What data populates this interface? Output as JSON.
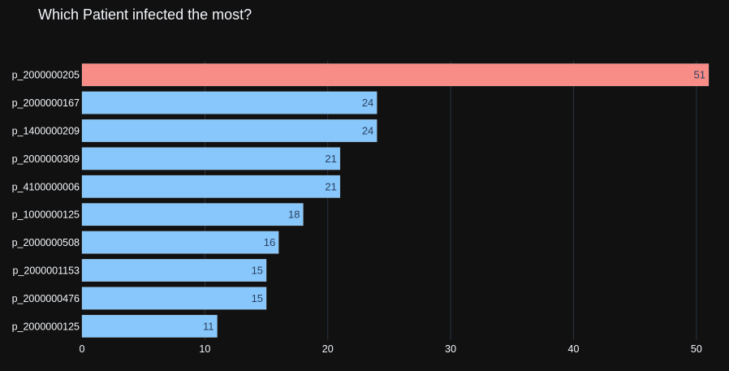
{
  "chart_data": {
    "type": "bar",
    "orientation": "horizontal",
    "title": "Which Patient infected the most?",
    "xlabel": "",
    "ylabel": "",
    "xlim": [
      0,
      51
    ],
    "x_ticks": [
      0,
      10,
      20,
      30,
      40,
      50
    ],
    "grid": true,
    "legend": "none",
    "categories": [
      "p_2000000205",
      "p_2000000167",
      "p_1400000209",
      "p_2000000309",
      "p_4100000006",
      "p_1000000125",
      "p_2000000508",
      "p_2000001153",
      "p_2000000476",
      "p_2000000125"
    ],
    "values": [
      51,
      24,
      24,
      21,
      21,
      18,
      16,
      15,
      15,
      11
    ],
    "bar_colors": [
      "#f88c86",
      "#87c7fb",
      "#87c7fb",
      "#87c7fb",
      "#87c7fb",
      "#87c7fb",
      "#87c7fb",
      "#87c7fb",
      "#87c7fb",
      "#87c7fb"
    ],
    "colors": {
      "background": "#111111",
      "grid": "#283442",
      "text": "#f2f5fa",
      "label_text": "#2a3f5f",
      "highlight": "#f88c86",
      "default": "#87c7fb"
    }
  }
}
